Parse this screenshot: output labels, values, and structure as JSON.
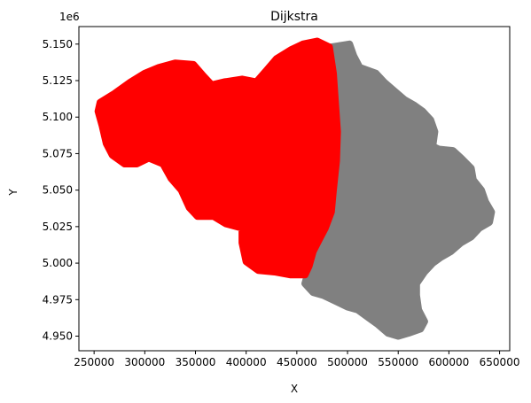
{
  "chart_data": {
    "type": "scatter",
    "title": "Dijkstra",
    "xlabel": "X",
    "ylabel": "Y",
    "y_offset_label": "1e6",
    "xlim": [
      235000,
      660000
    ],
    "ylim": [
      4940000,
      5162000
    ],
    "x_ticks": [
      250000,
      300000,
      350000,
      400000,
      450000,
      500000,
      550000,
      600000,
      650000
    ],
    "x_tick_labels": [
      "250000",
      "300000",
      "350000",
      "400000",
      "450000",
      "500000",
      "550000",
      "600000",
      "650000"
    ],
    "y_ticks": [
      4950000,
      4975000,
      5000000,
      5025000,
      5050000,
      5075000,
      5100000,
      5125000,
      5150000
    ],
    "y_tick_labels": [
      "4.950",
      "4.975",
      "5.000",
      "5.025",
      "5.050",
      "5.075",
      "5.100",
      "5.125",
      "5.150"
    ],
    "grid": false,
    "series": [
      {
        "color": "#808080",
        "regions": [
          [
            [
              484000,
              5148000
            ],
            [
              502000,
              5150000
            ],
            [
              506000,
              5142000
            ],
            [
              512000,
              5134000
            ],
            [
              528000,
              5130000
            ],
            [
              536000,
              5124000
            ],
            [
              546000,
              5118000
            ],
            [
              556000,
              5112000
            ],
            [
              566000,
              5108000
            ],
            [
              574000,
              5104000
            ],
            [
              582000,
              5098000
            ],
            [
              586000,
              5090000
            ],
            [
              584000,
              5080000
            ],
            [
              590000,
              5078000
            ],
            [
              604000,
              5077000
            ],
            [
              612000,
              5072000
            ],
            [
              622000,
              5065000
            ],
            [
              624000,
              5057000
            ],
            [
              632000,
              5050000
            ],
            [
              636000,
              5042000
            ],
            [
              642000,
              5035000
            ],
            [
              640000,
              5028000
            ],
            [
              630000,
              5024000
            ],
            [
              622000,
              5018000
            ],
            [
              612000,
              5014000
            ],
            [
              602000,
              5008000
            ],
            [
              592000,
              5004000
            ],
            [
              584000,
              5000000
            ],
            [
              576000,
              4994000
            ],
            [
              568000,
              4986000
            ],
            [
              568000,
              4978000
            ],
            [
              570000,
              4968000
            ],
            [
              576000,
              4960000
            ],
            [
              572000,
              4955000
            ],
            [
              560000,
              4952000
            ],
            [
              550000,
              4950000
            ],
            [
              540000,
              4952000
            ],
            [
              530000,
              4958000
            ],
            [
              522000,
              4962000
            ],
            [
              510000,
              4968000
            ],
            [
              500000,
              4970000
            ],
            [
              488000,
              4974000
            ],
            [
              476000,
              4978000
            ],
            [
              466000,
              4980000
            ],
            [
              458000,
              4986000
            ],
            [
              462000,
              4996000
            ],
            [
              464000,
              5006000
            ],
            [
              470000,
              5018000
            ],
            [
              476000,
              5030000
            ],
            [
              482000,
              5044000
            ],
            [
              486000,
              5060000
            ],
            [
              488000,
              5076000
            ],
            [
              486000,
              5096000
            ],
            [
              484000,
              5116000
            ],
            [
              482000,
              5134000
            ]
          ]
        ]
      },
      {
        "color": "#ff0000",
        "regions": [
          [
            [
              256000,
              5110000
            ],
            [
              270000,
              5116000
            ],
            [
              286000,
              5124000
            ],
            [
              300000,
              5130000
            ],
            [
              314000,
              5134000
            ],
            [
              330000,
              5137000
            ],
            [
              348000,
              5136000
            ],
            [
              358000,
              5128000
            ],
            [
              366000,
              5122000
            ],
            [
              378000,
              5124000
            ],
            [
              396000,
              5126000
            ],
            [
              410000,
              5124000
            ],
            [
              420000,
              5132000
            ],
            [
              430000,
              5140000
            ],
            [
              444000,
              5146000
            ],
            [
              456000,
              5150000
            ],
            [
              470000,
              5152000
            ],
            [
              482000,
              5148000
            ],
            [
              486000,
              5130000
            ],
            [
              488000,
              5110000
            ],
            [
              490000,
              5090000
            ],
            [
              489000,
              5070000
            ],
            [
              486000,
              5050000
            ],
            [
              484000,
              5035000
            ],
            [
              478000,
              5024000
            ],
            [
              472000,
              5016000
            ],
            [
              466000,
              5008000
            ],
            [
              462000,
              4998000
            ],
            [
              458000,
              4992000
            ],
            [
              444000,
              4992000
            ],
            [
              428000,
              4994000
            ],
            [
              412000,
              4995000
            ],
            [
              400000,
              5001000
            ],
            [
              396000,
              5014000
            ],
            [
              396000,
              5024000
            ],
            [
              380000,
              5027000
            ],
            [
              368000,
              5032000
            ],
            [
              352000,
              5032000
            ],
            [
              344000,
              5038000
            ],
            [
              336000,
              5050000
            ],
            [
              326000,
              5058000
            ],
            [
              318000,
              5068000
            ],
            [
              304000,
              5072000
            ],
            [
              292000,
              5068000
            ],
            [
              280000,
              5068000
            ],
            [
              268000,
              5074000
            ],
            [
              262000,
              5082000
            ],
            [
              258000,
              5094000
            ],
            [
              254000,
              5104000
            ]
          ]
        ]
      }
    ]
  }
}
